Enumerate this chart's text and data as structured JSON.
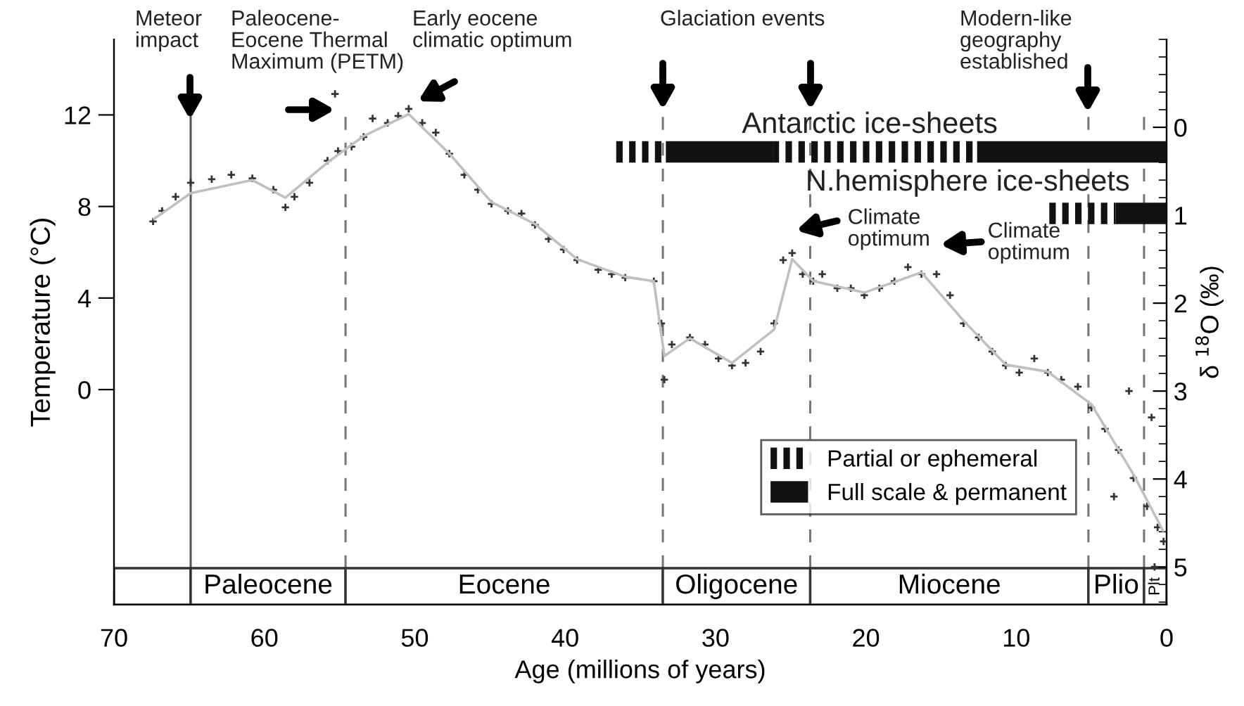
{
  "chart_data": {
    "type": "scatter",
    "xlabel": "Age (millions of years)",
    "ylabel": "Temperature (°C)",
    "y2label": "δ $^{18}$O (‰)",
    "xlim": [
      70,
      0
    ],
    "xticks": [
      70,
      60,
      50,
      40,
      30,
      20,
      10,
      0
    ],
    "ylim": [
      -9.4,
      15.3
    ],
    "yticks": [
      0,
      4,
      8,
      12
    ],
    "y2lim": [
      5.43,
      -1.0
    ],
    "y2ticks": [
      0,
      1,
      2,
      3,
      4,
      5
    ],
    "grid": false,
    "legend": "bottom right",
    "marker": "cross",
    "series": [
      {
        "axis": "y2",
        "color": "#333333",
        "x": [
          67.4,
          66.8,
          65.9,
          64.9,
          63.5,
          62.2,
          60.8,
          59.4,
          58.6,
          58.0,
          57.0,
          55.8,
          55.3,
          55.1,
          54.2,
          53.4,
          52.8,
          51.8,
          51.1,
          50.4,
          49.5,
          48.6,
          47.7,
          46.7,
          45.8,
          44.9,
          43.8,
          42.9,
          42.0,
          41.1,
          40.1,
          39.2,
          37.8,
          36.9,
          36.0,
          34.1,
          33.6,
          33.4,
          32.9,
          31.7,
          30.7,
          29.8,
          28.9,
          28.0,
          27.0,
          26.1,
          25.5,
          24.9,
          24.2,
          23.5,
          22.9,
          21.9,
          21.0,
          20.1,
          19.1,
          18.1,
          17.2,
          16.3,
          15.3,
          14.4,
          13.5,
          12.5,
          11.6,
          10.7,
          9.8,
          8.8,
          7.9,
          7.0,
          5.9,
          5.0,
          4.1,
          3.2,
          2.2,
          1.3,
          0.6,
          0.2,
          1.0,
          0.8,
          2.5,
          3.5
        ],
        "values": [
          1.07,
          0.95,
          0.79,
          0.63,
          0.59,
          0.54,
          0.58,
          0.71,
          0.91,
          0.79,
          0.63,
          0.38,
          -0.38,
          0.27,
          0.22,
          0.11,
          -0.1,
          -0.05,
          -0.13,
          -0.21,
          -0.05,
          0.06,
          0.3,
          0.54,
          0.71,
          0.87,
          0.95,
          0.98,
          1.11,
          1.27,
          1.39,
          1.51,
          1.62,
          1.67,
          1.71,
          1.75,
          2.23,
          2.87,
          2.47,
          2.39,
          2.47,
          2.63,
          2.71,
          2.68,
          2.55,
          2.23,
          1.51,
          1.43,
          1.67,
          1.75,
          1.67,
          1.83,
          1.83,
          1.91,
          1.83,
          1.75,
          1.59,
          1.67,
          1.67,
          1.91,
          2.23,
          2.39,
          2.55,
          2.71,
          2.79,
          2.63,
          2.79,
          2.87,
          2.95,
          3.19,
          3.43,
          3.67,
          3.99,
          4.31,
          4.55,
          4.71,
          3.3,
          5.0,
          3.0,
          4.2
        ]
      },
      {
        "type": "line",
        "axis": "y2",
        "color": "#c0c0c0",
        "marker": "none",
        "line_style": "solid",
        "x": [
          67.4,
          64.9,
          60.8,
          58.6,
          55.8,
          53.4,
          50.4,
          47.7,
          44.9,
          42.0,
          39.2,
          36.0,
          34.1,
          33.4,
          31.7,
          28.9,
          26.1,
          24.9,
          23.5,
          20.1,
          16.3,
          13.5,
          10.7,
          7.9,
          5.0,
          2.2,
          0.2
        ],
        "values": [
          1.05,
          0.75,
          0.6,
          0.8,
          0.4,
          0.1,
          -0.15,
          0.3,
          0.85,
          1.1,
          1.5,
          1.7,
          1.75,
          2.6,
          2.4,
          2.68,
          2.3,
          1.5,
          1.75,
          1.88,
          1.65,
          2.2,
          2.7,
          2.78,
          3.15,
          3.95,
          4.6
        ]
      },
      {
        "type": "line",
        "axis": "y2",
        "name": "Partial or ephemeral",
        "color": "#111111",
        "marker": "none",
        "line_style": "dotted",
        "x": [
          26.2,
          12.6
        ],
        "values": [
          0.28,
          0.28
        ]
      },
      {
        "type": "line",
        "axis": "y2",
        "color": "#111111",
        "marker": "none",
        "line_style": "dotted",
        "x": [
          36.6,
          33.3
        ],
        "values": [
          0.28,
          0.28
        ]
      },
      {
        "type": "line",
        "axis": "y2",
        "color": "#111111",
        "marker": "none",
        "line_style": "dotted",
        "x": [
          7.8,
          3.4
        ],
        "values": [
          0.98,
          0.98
        ]
      },
      {
        "type": "line",
        "axis": "y2",
        "name": "Full scale & permanent",
        "color": "#111111",
        "marker": "none",
        "line_style": "solid",
        "x": [
          12.6,
          0
        ],
        "values": [
          0.28,
          0.28
        ]
      },
      {
        "type": "line",
        "axis": "y2",
        "color": "#111111",
        "marker": "none",
        "line_style": "solid",
        "x": [
          33.3,
          26.2
        ],
        "values": [
          0.28,
          0.28
        ]
      },
      {
        "type": "line",
        "axis": "y2",
        "color": "#111111",
        "marker": "none",
        "line_style": "solid",
        "x": [
          3.4,
          0
        ],
        "values": [
          0.98,
          0.98
        ]
      }
    ],
    "ref_lines": [
      {
        "axis": "x",
        "value": 64.9,
        "color": "#555555",
        "line_style": "solid"
      },
      {
        "axis": "x",
        "value": 54.6,
        "color": "#777777",
        "line_style": "dashed"
      },
      {
        "axis": "x",
        "value": 33.5,
        "color": "#777777",
        "line_style": "dashed"
      },
      {
        "axis": "x",
        "value": 23.7,
        "color": "#777777",
        "line_style": "dashed"
      },
      {
        "axis": "x",
        "value": 5.2,
        "color": "#777777",
        "line_style": "dashed"
      },
      {
        "axis": "x",
        "value": 1.5,
        "color": "#777777",
        "line_style": "dashed"
      }
    ],
    "bands": [
      {
        "axis": "x",
        "from": 70,
        "to": 64.9,
        "label": null
      },
      {
        "axis": "x",
        "from": 64.9,
        "to": 54.6,
        "label": "Paleocene"
      },
      {
        "axis": "x",
        "from": 54.6,
        "to": 33.5,
        "label": "Eocene"
      },
      {
        "axis": "x",
        "from": 33.5,
        "to": 23.7,
        "label": "Oligocene"
      },
      {
        "axis": "x",
        "from": 23.7,
        "to": 5.2,
        "label": "Miocene"
      },
      {
        "axis": "x",
        "from": 5.2,
        "to": 1.5,
        "label": "Plio"
      },
      {
        "axis": "x",
        "from": 1.5,
        "to": 0,
        "label": "Plt"
      }
    ],
    "annotations": [
      "Meteor\nimpact",
      "Paleocene-\nEocene Thermal\nMaximum (PETM)",
      "Early eocene\nclimatic optimum",
      "Glaciation events",
      "Modern-like\ngeography\nestablished",
      "Climate\noptimum",
      "Climate\noptimum",
      "Antarctic ice-sheets",
      "N.hemisphere ice-sheets"
    ]
  }
}
